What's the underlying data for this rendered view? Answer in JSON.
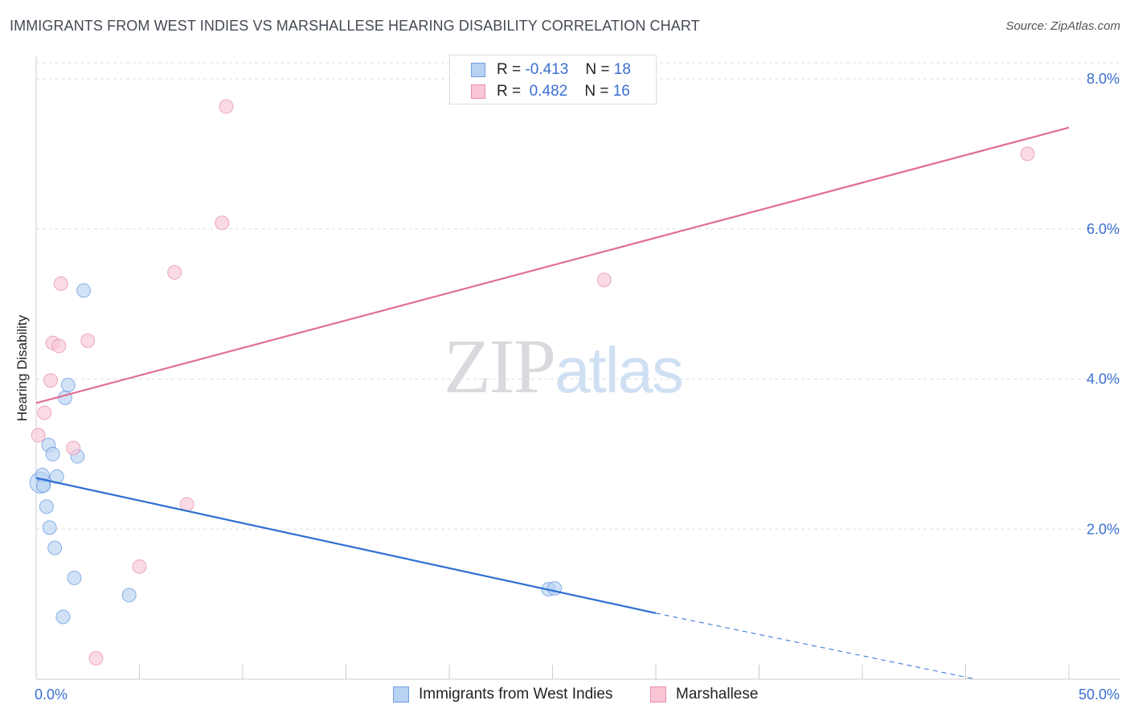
{
  "chart_data": {
    "type": "scatter",
    "title": "IMMIGRANTS FROM WEST INDIES VS MARSHALLESE HEARING DISABILITY CORRELATION CHART",
    "source": "Source: ZipAtlas.com",
    "xlabel": "",
    "ylabel": "Hearing Disability",
    "xlim": [
      0,
      50
    ],
    "ylim": [
      0,
      8.3
    ],
    "x_tick_labels": [
      "0.0%",
      "50.0%"
    ],
    "y_ticks": [
      2,
      4,
      6,
      8
    ],
    "y_tick_labels": [
      "2.0%",
      "4.0%",
      "6.0%",
      "8.0%"
    ],
    "grid": true,
    "legend_position": "bottom",
    "watermark": {
      "left": "ZIP",
      "right": "atlas"
    },
    "stats": [
      {
        "r_label": "R =",
        "r_value": "-0.413",
        "n_label": "N =",
        "n_value": "18"
      },
      {
        "r_label": "R =",
        "r_value": "0.482",
        "n_label": "N =",
        "n_value": "16"
      }
    ],
    "series": [
      {
        "name": "Immigrants from West Indies",
        "color": "#3a7bd5",
        "fill": "#b8d2f3",
        "points": [
          [
            0.2,
            2.62
          ],
          [
            0.3,
            2.72
          ],
          [
            0.35,
            2.58
          ],
          [
            0.5,
            2.3
          ],
          [
            0.6,
            3.12
          ],
          [
            0.65,
            2.02
          ],
          [
            0.8,
            3.0
          ],
          [
            0.9,
            1.75
          ],
          [
            1.0,
            2.7
          ],
          [
            1.3,
            0.83
          ],
          [
            1.4,
            3.75
          ],
          [
            1.55,
            3.92
          ],
          [
            1.85,
            1.35
          ],
          [
            2.0,
            2.97
          ],
          [
            2.3,
            5.18
          ],
          [
            4.5,
            1.12
          ],
          [
            24.8,
            1.2
          ],
          [
            25.1,
            1.21
          ]
        ],
        "trend": {
          "x0": 0,
          "y0": 2.68,
          "x1": 30,
          "y1": 0.88,
          "dash_to_x": 45.5,
          "dash_to_y": 0.0
        }
      },
      {
        "name": "Marshallese",
        "color": "#e06f96",
        "fill": "#f8c6d4",
        "points": [
          [
            0.1,
            3.25
          ],
          [
            0.4,
            3.55
          ],
          [
            0.7,
            3.98
          ],
          [
            0.8,
            4.48
          ],
          [
            1.1,
            4.44
          ],
          [
            1.2,
            5.27
          ],
          [
            1.8,
            3.08
          ],
          [
            2.5,
            4.51
          ],
          [
            2.9,
            0.28
          ],
          [
            5.0,
            1.5
          ],
          [
            6.7,
            5.42
          ],
          [
            7.3,
            2.33
          ],
          [
            9.0,
            6.08
          ],
          [
            9.2,
            7.63
          ],
          [
            27.5,
            5.32
          ],
          [
            48.0,
            7.0
          ]
        ],
        "trend": {
          "x0": 0,
          "y0": 3.68,
          "x1": 50,
          "y1": 7.35
        }
      }
    ]
  }
}
